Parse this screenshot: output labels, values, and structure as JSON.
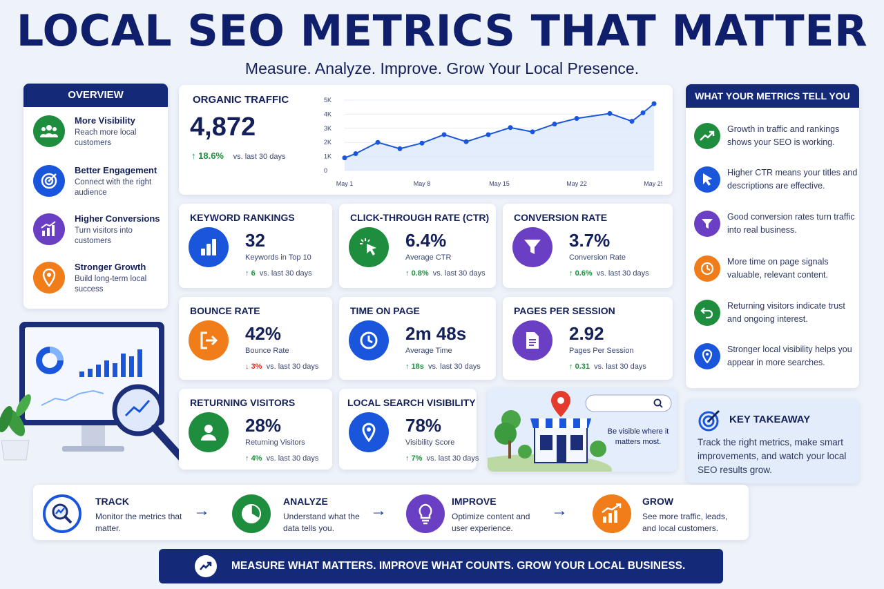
{
  "header": {
    "title": "LOCAL SEO METRICS THAT MATTER",
    "subtitle": "Measure. Analyze. Improve. Grow Your Local Presence."
  },
  "overview": {
    "heading": "OVERVIEW",
    "items": [
      {
        "title": "More Visibility",
        "desc": "Reach more local customers",
        "icon": "users-icon",
        "color": "#1e8e3e"
      },
      {
        "title": "Better Engagement",
        "desc": "Connect with the right audience",
        "icon": "target-icon",
        "color": "#1a56db"
      },
      {
        "title": "Higher Conversions",
        "desc": "Turn visitors into customers",
        "icon": "chart-up-icon",
        "color": "#6b3fc4"
      },
      {
        "title": "Stronger Growth",
        "desc": "Build long-term local success",
        "icon": "location-pin-icon",
        "color": "#f07c1a"
      }
    ]
  },
  "organic": {
    "title": "ORGANIC TRAFFIC",
    "value": "4,872",
    "change": "18.6%",
    "period": "vs. last 30 days",
    "chart_data": {
      "type": "area",
      "x": [
        "May 1",
        "May 2",
        "May 4",
        "May 6",
        "May 8",
        "May 10",
        "May 12",
        "May 14",
        "May 16",
        "May 18",
        "May 20",
        "May 22",
        "May 25",
        "May 27",
        "May 28",
        "May 29"
      ],
      "values": [
        900,
        1200,
        2000,
        1550,
        1950,
        2550,
        2050,
        2550,
        3050,
        2750,
        3300,
        3700,
        4050,
        3500,
        4100,
        4750
      ],
      "xticks": [
        "May 1",
        "May 8",
        "May 15",
        "May 22",
        "May 29"
      ],
      "yticks": [
        "0",
        "1K",
        "2K",
        "3K",
        "4K",
        "5K"
      ],
      "ylim": [
        0,
        5000
      ],
      "color": "#1a56db"
    }
  },
  "metrics": [
    {
      "title": "KEYWORD RANKINGS",
      "value": "32",
      "label": "Keywords in Top 10",
      "change": "6",
      "dir": "up",
      "period": "vs. last 30 days",
      "icon": "bar-chart-icon",
      "color": "#1a56db"
    },
    {
      "title": "CLICK-THROUGH RATE (CTR)",
      "value": "6.4%",
      "label": "Average CTR",
      "change": "0.8%",
      "dir": "up",
      "period": "vs. last 30 days",
      "icon": "cursor-click-icon",
      "color": "#1e8e3e"
    },
    {
      "title": "CONVERSION RATE",
      "value": "3.7%",
      "label": "Conversion Rate",
      "change": "0.6%",
      "dir": "up",
      "period": "vs. last 30 days",
      "icon": "funnel-icon",
      "color": "#6b3fc4"
    },
    {
      "title": "BOUNCE RATE",
      "value": "42%",
      "label": "Bounce Rate",
      "change": "3%",
      "dir": "down",
      "period": "vs. last 30 days",
      "icon": "exit-icon",
      "color": "#f07c1a"
    },
    {
      "title": "TIME ON PAGE",
      "value": "2m 48s",
      "label": "Average Time",
      "change": "18s",
      "dir": "up",
      "period": "vs. last 30 days",
      "icon": "clock-icon",
      "color": "#1a56db"
    },
    {
      "title": "PAGES PER SESSION",
      "value": "2.92",
      "label": "Pages Per Session",
      "change": "0.31",
      "dir": "up",
      "period": "vs. last 30 days",
      "icon": "document-icon",
      "color": "#6b3fc4"
    },
    {
      "title": "RETURNING VISITORS",
      "value": "28%",
      "label": "Returning Visitors",
      "change": "4%",
      "dir": "up",
      "period": "vs. last 30 days",
      "icon": "user-icon",
      "color": "#1e8e3e"
    },
    {
      "title": "LOCAL SEARCH VISIBILITY",
      "value": "78%",
      "label": "Visibility Score",
      "change": "7%",
      "dir": "up",
      "period": "vs. last 30 days",
      "icon": "location-pin-icon",
      "color": "#1a56db"
    }
  ],
  "store": {
    "caption": "Be visible where it matters most."
  },
  "insights": {
    "heading": "WHAT YOUR METRICS TELL YOU",
    "items": [
      {
        "text": "Growth in traffic and rankings shows your SEO is working.",
        "icon": "trend-up-icon",
        "color": "#1e8e3e"
      },
      {
        "text": "Higher CTR means your titles and descriptions are effective.",
        "icon": "cursor-icon",
        "color": "#1a56db"
      },
      {
        "text": "Good conversion rates turn traffic into real business.",
        "icon": "funnel-icon",
        "color": "#6b3fc4"
      },
      {
        "text": "More time on page signals valuable, relevant content.",
        "icon": "clock-icon",
        "color": "#f07c1a"
      },
      {
        "text": "Returning visitors indicate trust and ongoing interest.",
        "icon": "return-icon",
        "color": "#1e8e3e"
      },
      {
        "text": "Stronger local visibility helps you appear in more searches.",
        "icon": "location-pin-icon",
        "color": "#1a56db"
      }
    ]
  },
  "takeaway": {
    "heading": "KEY TAKEAWAY",
    "text": "Track the right metrics, make smart improvements, and watch your local SEO results grow."
  },
  "process": [
    {
      "title": "TRACK",
      "desc": "Monitor the metrics that matter.",
      "icon": "magnifier-chart-icon",
      "color": "#1a56db"
    },
    {
      "title": "ANALYZE",
      "desc": "Understand what the data tells you.",
      "icon": "pie-chart-icon",
      "color": "#1e8e3e"
    },
    {
      "title": "IMPROVE",
      "desc": "Optimize content and user experience.",
      "icon": "lightbulb-icon",
      "color": "#6b3fc4"
    },
    {
      "title": "GROW",
      "desc": "See more traffic, leads, and local customers.",
      "icon": "growth-chart-icon",
      "color": "#f07c1a"
    }
  ],
  "footer": {
    "text": "MEASURE WHAT MATTERS. IMPROVE WHAT COUNTS. GROW YOUR LOCAL BUSINESS."
  }
}
